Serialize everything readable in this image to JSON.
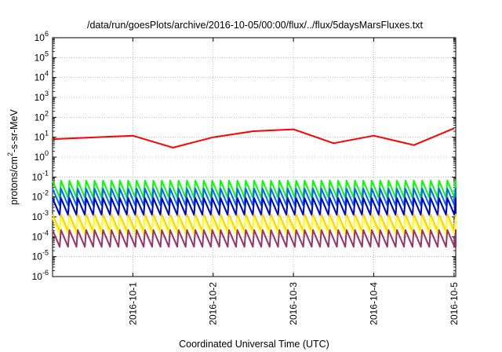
{
  "chart_data": {
    "type": "line",
    "title": "/data/run/goesPlots/archive/2016-10-05/00:00/flux/../flux/5daysMarsFluxes.txt",
    "xlabel": "Coordinated Universal Time (UTC)",
    "ylabel": "protons/cm²-s-sr-MeV",
    "yscale": "log",
    "ylim": [
      "1e-6",
      "1e6"
    ],
    "xlim": [
      "2016-09-30 00:00",
      "2016-10-05 00:30"
    ],
    "x_ticks": [
      "2016-10-1",
      "2016-10-2",
      "2016-10-3",
      "2016-10-4",
      "2016-10-5"
    ],
    "y_ticks": [
      {
        "base": "10",
        "exp": "-6"
      },
      {
        "base": "10",
        "exp": "-5"
      },
      {
        "base": "10",
        "exp": "-4"
      },
      {
        "base": "10",
        "exp": "-3"
      },
      {
        "base": "10",
        "exp": "-2"
      },
      {
        "base": "10",
        "exp": "-1"
      },
      {
        "base": "10",
        "exp": "0"
      },
      {
        "base": "10",
        "exp": "1"
      },
      {
        "base": "10",
        "exp": "2"
      },
      {
        "base": "10",
        "exp": "3"
      },
      {
        "base": "10",
        "exp": "4"
      },
      {
        "base": "10",
        "exp": "5"
      },
      {
        "base": "10",
        "exp": "6"
      }
    ],
    "grid": true,
    "series": [
      {
        "color": "#ff0000",
        "x": [
          "2016-09-30 00:00",
          "2016-10-01 00:00",
          "2016-10-01 12:00",
          "2016-10-02 00:00",
          "2016-10-02 12:00",
          "2016-10-03 00:00",
          "2016-10-03 12:00",
          "2016-10-04 00:00",
          "2016-10-04 12:00",
          "2016-10-05 00:00"
        ],
        "y": [
          8,
          12,
          3,
          10,
          20,
          25,
          5,
          12,
          4,
          28
        ]
      },
      {
        "color": "#00ff00",
        "x": [
          "2016-09-30 00:00",
          "2016-10-05 00:30"
        ],
        "y": [
          0.03,
          0.03
        ]
      },
      {
        "color": "#0066ff",
        "x": [
          "2016-09-30 00:00",
          "2016-10-05 00:30"
        ],
        "y": [
          0.012,
          0.012
        ]
      },
      {
        "color": "#00cccc",
        "x": [
          "2016-09-30 00:00",
          "2016-10-05 00:30"
        ],
        "y": [
          0.004,
          0.004
        ]
      },
      {
        "color": "#0000cc",
        "x": [
          "2016-09-30 00:00",
          "2016-10-05 00:30"
        ],
        "y": [
          0.004,
          0.004
        ]
      },
      {
        "color": "#ffcc00",
        "x": [
          "2016-09-30 00:00",
          "2016-10-05 00:30"
        ],
        "y": [
          0.0006,
          0.0006
        ]
      },
      {
        "color": "#ffff44",
        "x": [
          "2016-09-30 00:00",
          "2016-10-05 00:30"
        ],
        "y": [
          0.0004,
          0.0004
        ]
      },
      {
        "color": "#993366",
        "x": [
          "2016-09-30 00:00",
          "2016-10-05 00:30"
        ],
        "y": [
          0.0001,
          0.0001
        ]
      }
    ]
  }
}
